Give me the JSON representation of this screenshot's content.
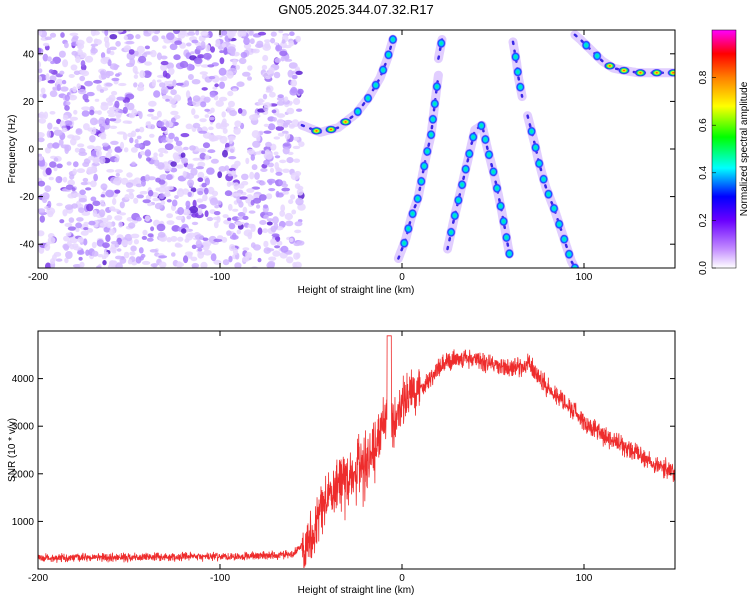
{
  "figure": {
    "title": "GN05.2025.344.07.32.R17"
  },
  "chart_data": [
    {
      "type": "heatmap",
      "xlabel": "Height of straight line (km)",
      "ylabel": "Frequency (Hz)",
      "xlim": [
        -200,
        150
      ],
      "ylim": [
        -50,
        50
      ],
      "xticks": [
        -200,
        -100,
        0,
        100
      ],
      "yticks": [
        -40,
        -20,
        0,
        20,
        40
      ],
      "colorbar": {
        "label": "Normalized spectral amplitude",
        "range": [
          0,
          1
        ],
        "ticks": [
          "0.0",
          "0.2",
          "0.4",
          "0.6",
          "0.8"
        ],
        "colors": [
          "#ffffff",
          "#8a2be2",
          "#0000ff",
          "#00ffff",
          "#00ff00",
          "#ffff00",
          "#ff8000",
          "#ff0000",
          "#ff00ff"
        ]
      },
      "noise_region_x": [
        -200,
        -55
      ],
      "traces": [
        {
          "x": [
            -55,
            -45,
            -35,
            -25,
            -18,
            -12,
            -8,
            -5
          ],
          "y": [
            10,
            7,
            9,
            15,
            22,
            30,
            38,
            46
          ]
        },
        {
          "x": [
            -2,
            2,
            5,
            9,
            13,
            16,
            18,
            20
          ],
          "y": [
            -46,
            -38,
            -29,
            -20,
            -4,
            6,
            19,
            31
          ]
        },
        {
          "x": [
            20,
            22
          ],
          "y": [
            38,
            46
          ]
        },
        {
          "x": [
            25,
            29,
            33,
            37,
            40,
            44,
            47,
            51,
            55,
            59
          ],
          "y": [
            -42,
            -28,
            -15,
            -2,
            8,
            10,
            0,
            -12,
            -27,
            -44
          ]
        },
        {
          "x": [
            61,
            63,
            64,
            66
          ],
          "y": [
            45,
            36,
            30,
            22
          ]
        },
        {
          "x": [
            69,
            71,
            73,
            75,
            79,
            84,
            87,
            90,
            93,
            95
          ],
          "y": [
            14,
            8,
            2,
            -5,
            -16,
            -26,
            -33,
            -40,
            -47,
            -50
          ]
        },
        {
          "x": [
            95,
            98,
            102,
            106,
            110,
            116,
            122,
            130,
            140,
            150
          ],
          "y": [
            48,
            46,
            43,
            40,
            37,
            34,
            33,
            32,
            32,
            32
          ]
        }
      ],
      "hot_x": [
        -50,
        -40,
        120,
        135,
        145
      ]
    },
    {
      "type": "line",
      "xlabel": "Height of straight line (km)",
      "ylabel": "SNR (10 * v/v)",
      "xlim": [
        -200,
        150
      ],
      "ylim": [
        0,
        5000
      ],
      "xticks": [
        -200,
        -100,
        0,
        100
      ],
      "yticks": [
        1000,
        2000,
        3000,
        4000
      ],
      "line_color": "#ee2c2c",
      "envelope": {
        "x": [
          -200,
          -100,
          -60,
          -50,
          -45,
          -40,
          -30,
          -20,
          -15,
          -10,
          -5,
          0,
          10,
          20,
          30,
          40,
          50,
          60,
          70,
          80,
          90,
          100,
          110,
          120,
          130,
          140,
          150
        ],
        "y": [
          230,
          260,
          300,
          700,
          1200,
          1600,
          1900,
          2300,
          2500,
          3200,
          3000,
          3500,
          3800,
          4200,
          4450,
          4400,
          4300,
          4200,
          4300,
          3800,
          3500,
          3100,
          2800,
          2600,
          2400,
          2200,
          2000
        ]
      }
    }
  ]
}
